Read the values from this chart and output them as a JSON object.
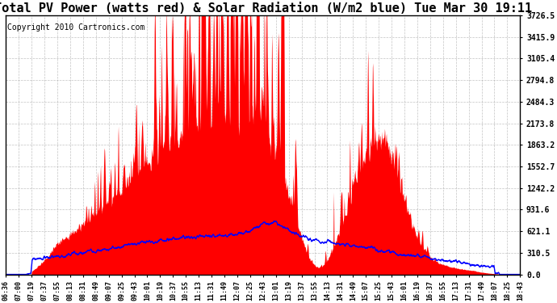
{
  "title": "Total PV Power (watts red) & Solar Radiation (W/m2 blue) Tue Mar 30 19:11",
  "copyright_text": "Copyright 2010 Cartronics.com",
  "y_ticks": [
    0.0,
    310.5,
    621.1,
    931.6,
    1242.2,
    1552.7,
    1863.2,
    2173.8,
    2484.3,
    2794.8,
    3105.4,
    3415.9,
    3726.5
  ],
  "x_tick_labels": [
    "06:36",
    "07:00",
    "07:19",
    "07:37",
    "07:55",
    "08:13",
    "08:31",
    "08:49",
    "09:07",
    "09:25",
    "09:43",
    "10:01",
    "10:19",
    "10:37",
    "10:55",
    "11:13",
    "11:31",
    "11:49",
    "12:07",
    "12:25",
    "12:43",
    "13:01",
    "13:19",
    "13:37",
    "13:55",
    "14:13",
    "14:31",
    "14:49",
    "15:07",
    "15:25",
    "15:43",
    "16:01",
    "16:19",
    "16:37",
    "16:55",
    "17:13",
    "17:31",
    "17:49",
    "18:07",
    "18:25",
    "18:43"
  ],
  "ymax": 3726.5,
  "ymin": 0.0,
  "pv_color": "#ff0000",
  "solar_color": "#0000ff",
  "bg_color": "#ffffff",
  "grid_color": "#aaaaaa",
  "title_fontsize": 11,
  "copyright_fontsize": 7
}
